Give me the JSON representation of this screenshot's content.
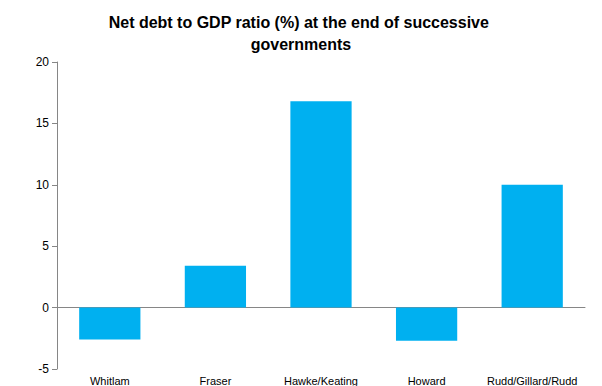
{
  "chart_data": {
    "type": "bar",
    "title": "Net debt to GDP ratio (%) at the end of successive governments",
    "categories": [
      "Whitlam",
      "Fraser",
      "Hawke/Keating",
      "Howard",
      "Rudd/Gillard/Rudd"
    ],
    "values": [
      -2.6,
      3.4,
      16.8,
      -2.7,
      10.0
    ],
    "color": "#00b0f0",
    "ylim": [
      -5,
      20
    ],
    "yticks": [
      -5,
      0,
      5,
      10,
      15,
      20
    ],
    "grid": false
  }
}
